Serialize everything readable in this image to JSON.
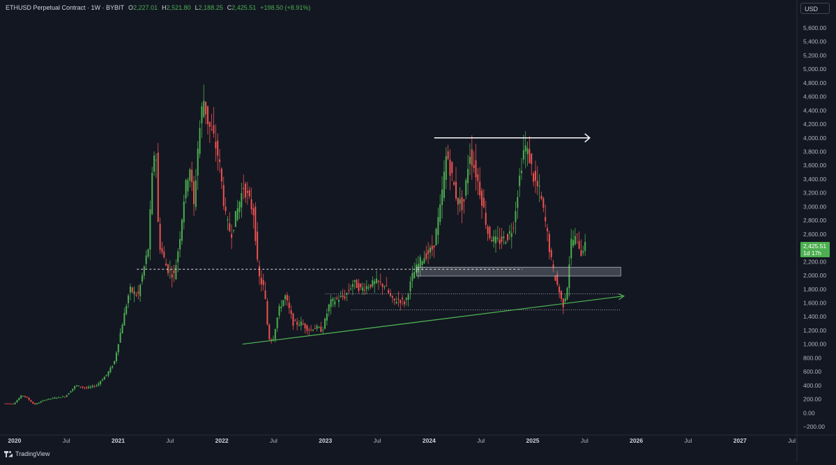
{
  "header": {
    "symbol": "ETHUSD Perpetual Contract · 1W · BYBIT",
    "open_label": "O",
    "open": "2,227.01",
    "high_label": "H",
    "high": "2,521.80",
    "low_label": "L",
    "low": "2,188.25",
    "close_label": "C",
    "close": "2,425.51",
    "change": "+198.50 (+8.91%)"
  },
  "currency": "USD",
  "price_tag": {
    "price": "2,425.51",
    "countdown": "1d 17h"
  },
  "watermark": "TradingView",
  "colors": {
    "background": "#131722",
    "up": "#4caf50",
    "down": "#ef5350",
    "trendline": "#4caf50",
    "arrow": "#ffffff",
    "zone": "#9598a1"
  },
  "chart_data": {
    "type": "candlestick",
    "y_ticks": [
      "5,600.00",
      "5,400.00",
      "5,200.00",
      "5,000.00",
      "4,800.00",
      "4,600.00",
      "4,400.00",
      "4,200.00",
      "4,000.00",
      "3,800.00",
      "3,600.00",
      "3,400.00",
      "3,200.00",
      "3,000.00",
      "2,800.00",
      "2,600.00",
      "2,400.00",
      "2,200.00",
      "2,000.00",
      "1,800.00",
      "1,600.00",
      "1,400.00",
      "1,200.00",
      "1,000.00",
      "800.00",
      "600.00",
      "400.00",
      "200.00",
      "0.00",
      "−200.00"
    ],
    "ylim": [
      -200,
      5600
    ],
    "x_ticks": [
      {
        "label": "2020",
        "t": 2020.0,
        "bold": true
      },
      {
        "label": "Jul",
        "t": 2020.5,
        "bold": false
      },
      {
        "label": "2021",
        "t": 2021.0,
        "bold": true
      },
      {
        "label": "Jul",
        "t": 2021.5,
        "bold": false
      },
      {
        "label": "2022",
        "t": 2022.0,
        "bold": true
      },
      {
        "label": "Jul",
        "t": 2022.5,
        "bold": false
      },
      {
        "label": "2023",
        "t": 2023.0,
        "bold": true
      },
      {
        "label": "Jul",
        "t": 2023.5,
        "bold": false
      },
      {
        "label": "2024",
        "t": 2024.0,
        "bold": true
      },
      {
        "label": "Jul",
        "t": 2024.5,
        "bold": false
      },
      {
        "label": "2025",
        "t": 2025.0,
        "bold": true
      },
      {
        "label": "Jul",
        "t": 2025.5,
        "bold": false
      },
      {
        "label": "2026",
        "t": 2026.0,
        "bold": true
      },
      {
        "label": "Jul",
        "t": 2026.5,
        "bold": false
      },
      {
        "label": "2027",
        "t": 2027.0,
        "bold": true
      },
      {
        "label": "Jul",
        "t": 2027.5,
        "bold": false
      }
    ],
    "xlim": [
      2019.9,
      2027.55
    ],
    "price_path": [
      [
        2019.9,
        140
      ],
      [
        2020.0,
        130
      ],
      [
        2020.08,
        260
      ],
      [
        2020.12,
        230
      ],
      [
        2020.2,
        120
      ],
      [
        2020.3,
        190
      ],
      [
        2020.4,
        220
      ],
      [
        2020.5,
        240
      ],
      [
        2020.6,
        400
      ],
      [
        2020.7,
        360
      ],
      [
        2020.8,
        400
      ],
      [
        2020.9,
        560
      ],
      [
        2020.97,
        730
      ],
      [
        2021.05,
        1300
      ],
      [
        2021.12,
        1800
      ],
      [
        2021.2,
        1700
      ],
      [
        2021.3,
        2400
      ],
      [
        2021.34,
        3500
      ],
      [
        2021.37,
        4000
      ],
      [
        2021.4,
        2500
      ],
      [
        2021.48,
        2100
      ],
      [
        2021.55,
        2000
      ],
      [
        2021.6,
        2500
      ],
      [
        2021.65,
        3200
      ],
      [
        2021.7,
        3600
      ],
      [
        2021.74,
        3000
      ],
      [
        2021.78,
        3900
      ],
      [
        2021.83,
        4600
      ],
      [
        2021.88,
        4200
      ],
      [
        2021.93,
        4000
      ],
      [
        2021.98,
        3700
      ],
      [
        2022.05,
        2800
      ],
      [
        2022.1,
        2600
      ],
      [
        2022.15,
        2900
      ],
      [
        2022.22,
        3300
      ],
      [
        2022.27,
        3100
      ],
      [
        2022.32,
        2900
      ],
      [
        2022.36,
        2000
      ],
      [
        2022.42,
        1800
      ],
      [
        2022.46,
        1100
      ],
      [
        2022.5,
        1050
      ],
      [
        2022.56,
        1500
      ],
      [
        2022.62,
        1700
      ],
      [
        2022.7,
        1300
      ],
      [
        2022.78,
        1300
      ],
      [
        2022.86,
        1200
      ],
      [
        2022.9,
        1250
      ],
      [
        2022.98,
        1200
      ],
      [
        2023.05,
        1600
      ],
      [
        2023.12,
        1650
      ],
      [
        2023.2,
        1700
      ],
      [
        2023.28,
        1900
      ],
      [
        2023.35,
        1800
      ],
      [
        2023.42,
        1850
      ],
      [
        2023.5,
        1900
      ],
      [
        2023.58,
        1850
      ],
      [
        2023.66,
        1620
      ],
      [
        2023.72,
        1650
      ],
      [
        2023.78,
        1600
      ],
      [
        2023.85,
        2000
      ],
      [
        2023.92,
        2200
      ],
      [
        2023.98,
        2300
      ],
      [
        2024.05,
        2400
      ],
      [
        2024.12,
        3000
      ],
      [
        2024.18,
        3800
      ],
      [
        2024.22,
        3500
      ],
      [
        2024.28,
        3100
      ],
      [
        2024.34,
        3000
      ],
      [
        2024.4,
        3800
      ],
      [
        2024.46,
        3500
      ],
      [
        2024.52,
        3100
      ],
      [
        2024.58,
        2600
      ],
      [
        2024.64,
        2500
      ],
      [
        2024.7,
        2500
      ],
      [
        2024.76,
        2550
      ],
      [
        2024.82,
        2700
      ],
      [
        2024.88,
        3400
      ],
      [
        2024.93,
        3900
      ],
      [
        2024.98,
        3700
      ],
      [
        2025.02,
        3400
      ],
      [
        2025.08,
        3200
      ],
      [
        2025.14,
        2700
      ],
      [
        2025.2,
        2100
      ],
      [
        2025.26,
        1800
      ],
      [
        2025.3,
        1550
      ],
      [
        2025.34,
        1800
      ],
      [
        2025.38,
        2500
      ],
      [
        2025.44,
        2550
      ],
      [
        2025.48,
        2300
      ],
      [
        2025.5,
        2425
      ]
    ],
    "annotations": {
      "resistance_arrow": {
        "from_t": 2024.05,
        "to_t": 2025.55,
        "price": 4000
      },
      "dashed_line": {
        "from_t": 2021.18,
        "to_t": 2024.9,
        "price": 2090
      },
      "zone": {
        "from_t": 2023.88,
        "to_t": 2025.85,
        "top": 2120,
        "bottom": 1990
      },
      "dotted_lines": [
        {
          "from_t": 2023.0,
          "to_t": 2025.85,
          "price": 1730
        },
        {
          "from_t": 2023.25,
          "to_t": 2025.85,
          "price": 1500
        }
      ],
      "trendline": {
        "from": [
          2022.2,
          1000
        ],
        "to": [
          2025.88,
          1700
        ]
      }
    }
  }
}
